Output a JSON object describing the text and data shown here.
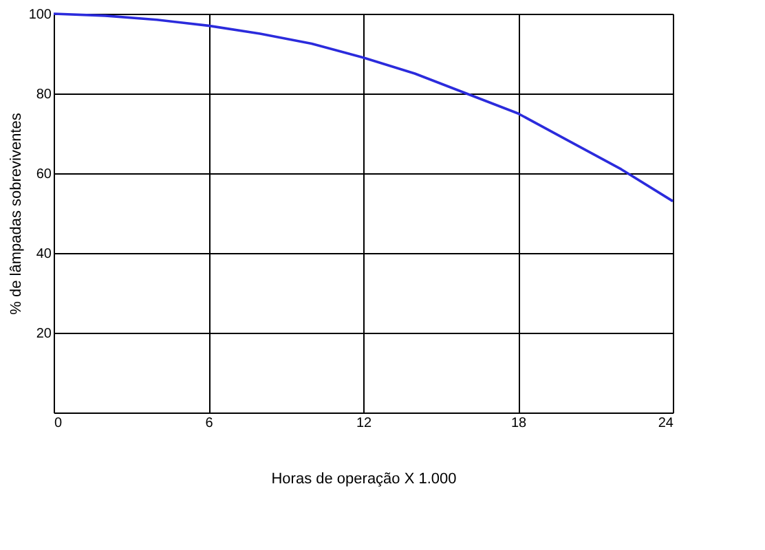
{
  "chart_data": {
    "type": "line",
    "xlabel": "Horas de operação X 1.000",
    "ylabel": "% de lâmpadas sobreviventes",
    "x": [
      0,
      2,
      4,
      6,
      8,
      10,
      12,
      14,
      16,
      18,
      20,
      22,
      24
    ],
    "series": [
      {
        "color": "#2b2bdc",
        "values": [
          100,
          99.5,
          98.5,
          97,
          95,
          92.5,
          89,
          85,
          80,
          75,
          68,
          61,
          53
        ]
      }
    ],
    "xlim": [
      0,
      24
    ],
    "xticks": [
      0,
      6,
      12,
      18,
      24
    ],
    "ylim": [
      0,
      100
    ],
    "yticks": [
      {
        "value": 0,
        "label": null
      },
      20,
      40,
      60,
      80,
      100
    ],
    "grid": true,
    "marker": "none",
    "line_style": "solid"
  }
}
